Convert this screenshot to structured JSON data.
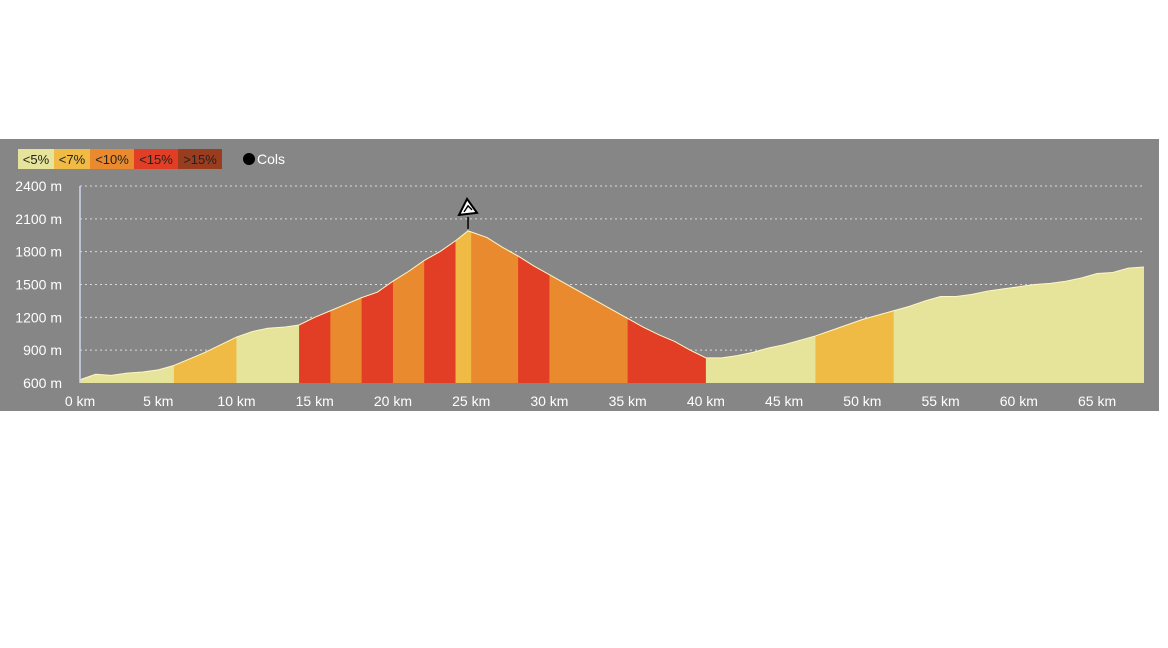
{
  "chart_data": {
    "type": "area",
    "title": "",
    "xlabel": "",
    "ylabel": "",
    "xlim": [
      0,
      68
    ],
    "ylim": [
      600,
      2400
    ],
    "grid": true,
    "legend_position": "top-left",
    "x_ticks": [
      "0 km",
      "5 km",
      "10 km",
      "15 km",
      "20 km",
      "25 km",
      "30 km",
      "35 km",
      "40 km",
      "45 km",
      "50 km",
      "55 km",
      "60 km",
      "65 km"
    ],
    "y_ticks": [
      "600 m",
      "900 m",
      "1200 m",
      "1500 m",
      "1800 m",
      "2100 m",
      "2400 m"
    ],
    "x_tick_values": [
      0,
      5,
      10,
      15,
      20,
      25,
      30,
      35,
      40,
      45,
      50,
      55,
      60,
      65
    ],
    "y_tick_values": [
      600,
      900,
      1200,
      1500,
      1800,
      2100,
      2400
    ],
    "legend": [
      {
        "label": "<5%",
        "color": "#e6e49a"
      },
      {
        "label": "<7%",
        "color": "#f0bb44"
      },
      {
        "label": "<10%",
        "color": "#ea8a2e"
      },
      {
        "label": "<15%",
        "color": "#e23d25"
      },
      {
        "label": ">15%",
        "color": "#9a3c1e"
      }
    ],
    "marker_legend_label": "Cols",
    "elevation_profile": {
      "x_km": [
        0,
        1,
        2,
        3,
        4,
        5,
        6,
        7,
        8,
        9,
        10,
        11,
        12,
        13,
        14,
        15,
        16,
        17,
        18,
        19,
        20,
        21,
        22,
        23,
        24,
        24.8,
        26,
        27,
        28,
        29,
        30,
        31,
        32,
        33,
        34,
        35,
        36,
        37,
        38,
        39,
        40,
        41,
        42,
        43,
        44,
        45,
        46,
        47,
        48,
        49,
        50,
        51,
        52,
        53,
        54,
        55,
        56,
        57,
        58,
        59,
        60,
        61,
        62,
        63,
        64,
        65,
        66,
        67,
        68
      ],
      "elev_m": [
        630,
        680,
        670,
        690,
        700,
        720,
        760,
        820,
        880,
        950,
        1020,
        1070,
        1100,
        1110,
        1130,
        1200,
        1260,
        1320,
        1380,
        1430,
        1530,
        1620,
        1720,
        1800,
        1900,
        1990,
        1930,
        1840,
        1760,
        1670,
        1590,
        1510,
        1430,
        1350,
        1270,
        1190,
        1110,
        1040,
        980,
        900,
        830,
        830,
        850,
        880,
        920,
        950,
        990,
        1030,
        1080,
        1130,
        1180,
        1220,
        1260,
        1300,
        1350,
        1390,
        1390,
        1410,
        1440,
        1460,
        1480,
        1500,
        1510,
        1530,
        1560,
        1600,
        1610,
        1650,
        1660
      ]
    },
    "grade_segments": [
      {
        "from_km": 0,
        "to_km": 6,
        "grade": "<5%"
      },
      {
        "from_km": 6,
        "to_km": 10,
        "grade": "<7%"
      },
      {
        "from_km": 10,
        "to_km": 14,
        "grade": "<5%"
      },
      {
        "from_km": 14,
        "to_km": 16,
        "grade": "<15%"
      },
      {
        "from_km": 16,
        "to_km": 18,
        "grade": "<10%"
      },
      {
        "from_km": 18,
        "to_km": 20,
        "grade": "<15%"
      },
      {
        "from_km": 20,
        "to_km": 22,
        "grade": "<10%"
      },
      {
        "from_km": 22,
        "to_km": 24,
        "grade": "<15%"
      },
      {
        "from_km": 24,
        "to_km": 25,
        "grade": "<7%"
      },
      {
        "from_km": 25,
        "to_km": 28,
        "grade": "<10%"
      },
      {
        "from_km": 28,
        "to_km": 30,
        "grade": "<15%"
      },
      {
        "from_km": 30,
        "to_km": 35,
        "grade": "<10%"
      },
      {
        "from_km": 35,
        "to_km": 38,
        "grade": "<15%"
      },
      {
        "from_km": 38,
        "to_km": 40,
        "grade": "<15%"
      },
      {
        "from_km": 40,
        "to_km": 47,
        "grade": "<5%"
      },
      {
        "from_km": 47,
        "to_km": 52,
        "grade": "<7%"
      },
      {
        "from_km": 52,
        "to_km": 68,
        "grade": "<5%"
      }
    ],
    "annotations": [
      {
        "type": "col",
        "x_km": 24.8,
        "elev_m": 1990
      }
    ]
  }
}
